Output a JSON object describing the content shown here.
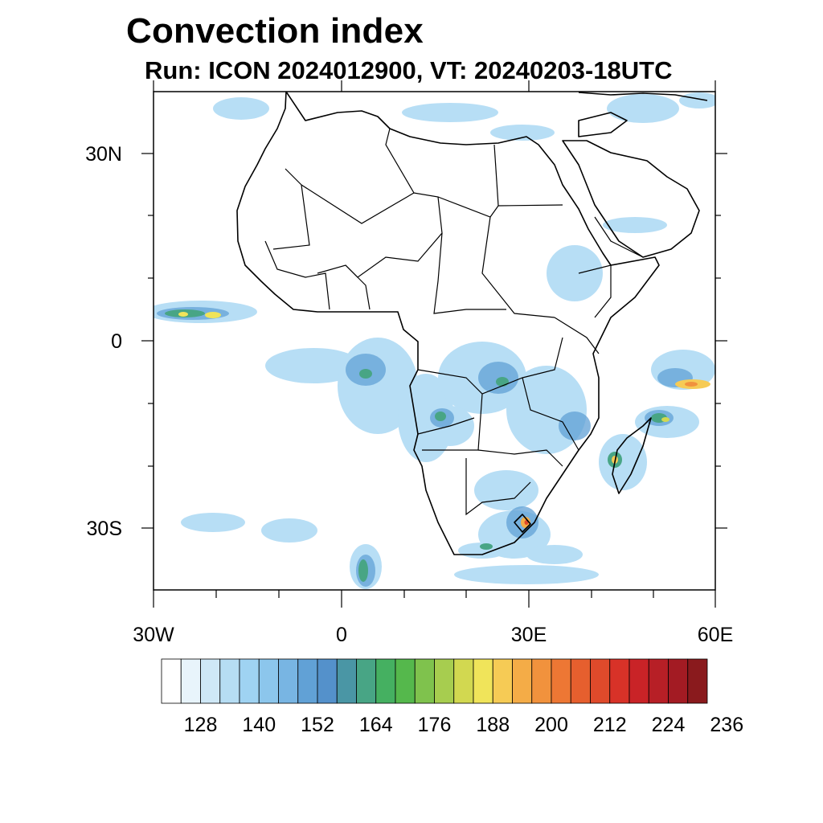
{
  "title": "Convection index",
  "subtitle": "Run: ICON 2024012900,  VT: 20240203-18UTC",
  "map": {
    "extent": {
      "lon": [
        -30,
        60
      ],
      "lat": [
        -40,
        40
      ]
    },
    "lat_ticks": [
      {
        "value": 30,
        "label": "30N"
      },
      {
        "value": 0,
        "label": "0"
      },
      {
        "value": -30,
        "label": "30S"
      }
    ],
    "lon_ticks": [
      {
        "value": -30,
        "label": "30W"
      },
      {
        "value": 0,
        "label": "0"
      },
      {
        "value": 30,
        "label": "30E"
      },
      {
        "value": 60,
        "label": "60E"
      }
    ]
  },
  "colorbar": {
    "colors": [
      "#ffffff",
      "#e8f4fb",
      "#cfe8f6",
      "#b6ddf3",
      "#9fd3f2",
      "#8cc6ec",
      "#78b5e3",
      "#61a1d6",
      "#5491cb",
      "#4a96a5",
      "#48a585",
      "#45b061",
      "#55b84c",
      "#7fc24d",
      "#a7cd4f",
      "#d2d850",
      "#f0e45a",
      "#f6cb55",
      "#f4ac47",
      "#f1923d",
      "#ed7734",
      "#e65f2e",
      "#df4a2b",
      "#d83228",
      "#c92327",
      "#b71f26",
      "#a31b23",
      "#8a1a1d"
    ],
    "labels": [
      "128",
      "140",
      "152",
      "164",
      "176",
      "188",
      "200",
      "212",
      "224",
      "236"
    ]
  }
}
